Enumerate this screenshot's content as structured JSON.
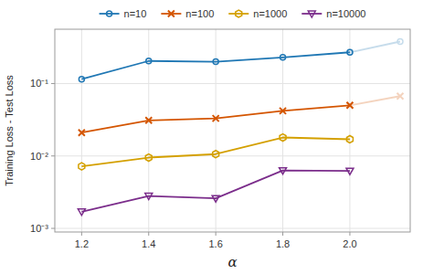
{
  "chart_data": {
    "type": "line",
    "log": "y",
    "x": [
      1.2,
      1.4,
      1.6,
      1.8,
      2.0
    ],
    "xlabel": "α",
    "ylabel": "Training Loss - Test Loss",
    "xlim": [
      1.12,
      2.18
    ],
    "xticks": [
      1.2,
      1.4,
      1.6,
      1.8,
      {
        "value": 2.0,
        "label": "2.0"
      }
    ],
    "ylim": [
      0.0008912509381337459,
      0.5623413251903491
    ],
    "yticks": [
      {
        "value": 0.001,
        "label": "10⁻³"
      },
      {
        "value": 0.01,
        "label": "10⁻²"
      },
      {
        "value": 0.1,
        "label": "10⁻¹"
      }
    ],
    "grid": true,
    "legend": "top",
    "series": [
      {
        "name": "n=10",
        "color": "#1f77b4",
        "marker": "circle",
        "values": [
          0.115,
          0.205,
          0.2,
          0.23,
          0.27
        ]
      },
      {
        "name": "n=100",
        "color": "#d45500",
        "marker": "x",
        "values": [
          0.021,
          0.031,
          0.033,
          0.042,
          0.05
        ]
      },
      {
        "name": "n=1000",
        "color": "#d4a000",
        "marker": "hexagon",
        "values": [
          0.0072,
          0.0095,
          0.0106,
          0.018,
          0.017
        ]
      },
      {
        "name": "n=10000",
        "color": "#7b2d8b",
        "marker": "triangle-down",
        "values": [
          0.0017,
          0.0028,
          0.0026,
          0.0063,
          0.0062
        ]
      },
      {
        "color": "#1f77b4",
        "marker": "circle",
        "x": [
          2.0,
          2.15
        ],
        "values": [
          0.27,
          0.38
        ]
      },
      {
        "color": "#d45500",
        "marker": "x",
        "x": [
          2.0,
          2.15
        ],
        "values": [
          0.05,
          0.067
        ]
      }
    ]
  }
}
